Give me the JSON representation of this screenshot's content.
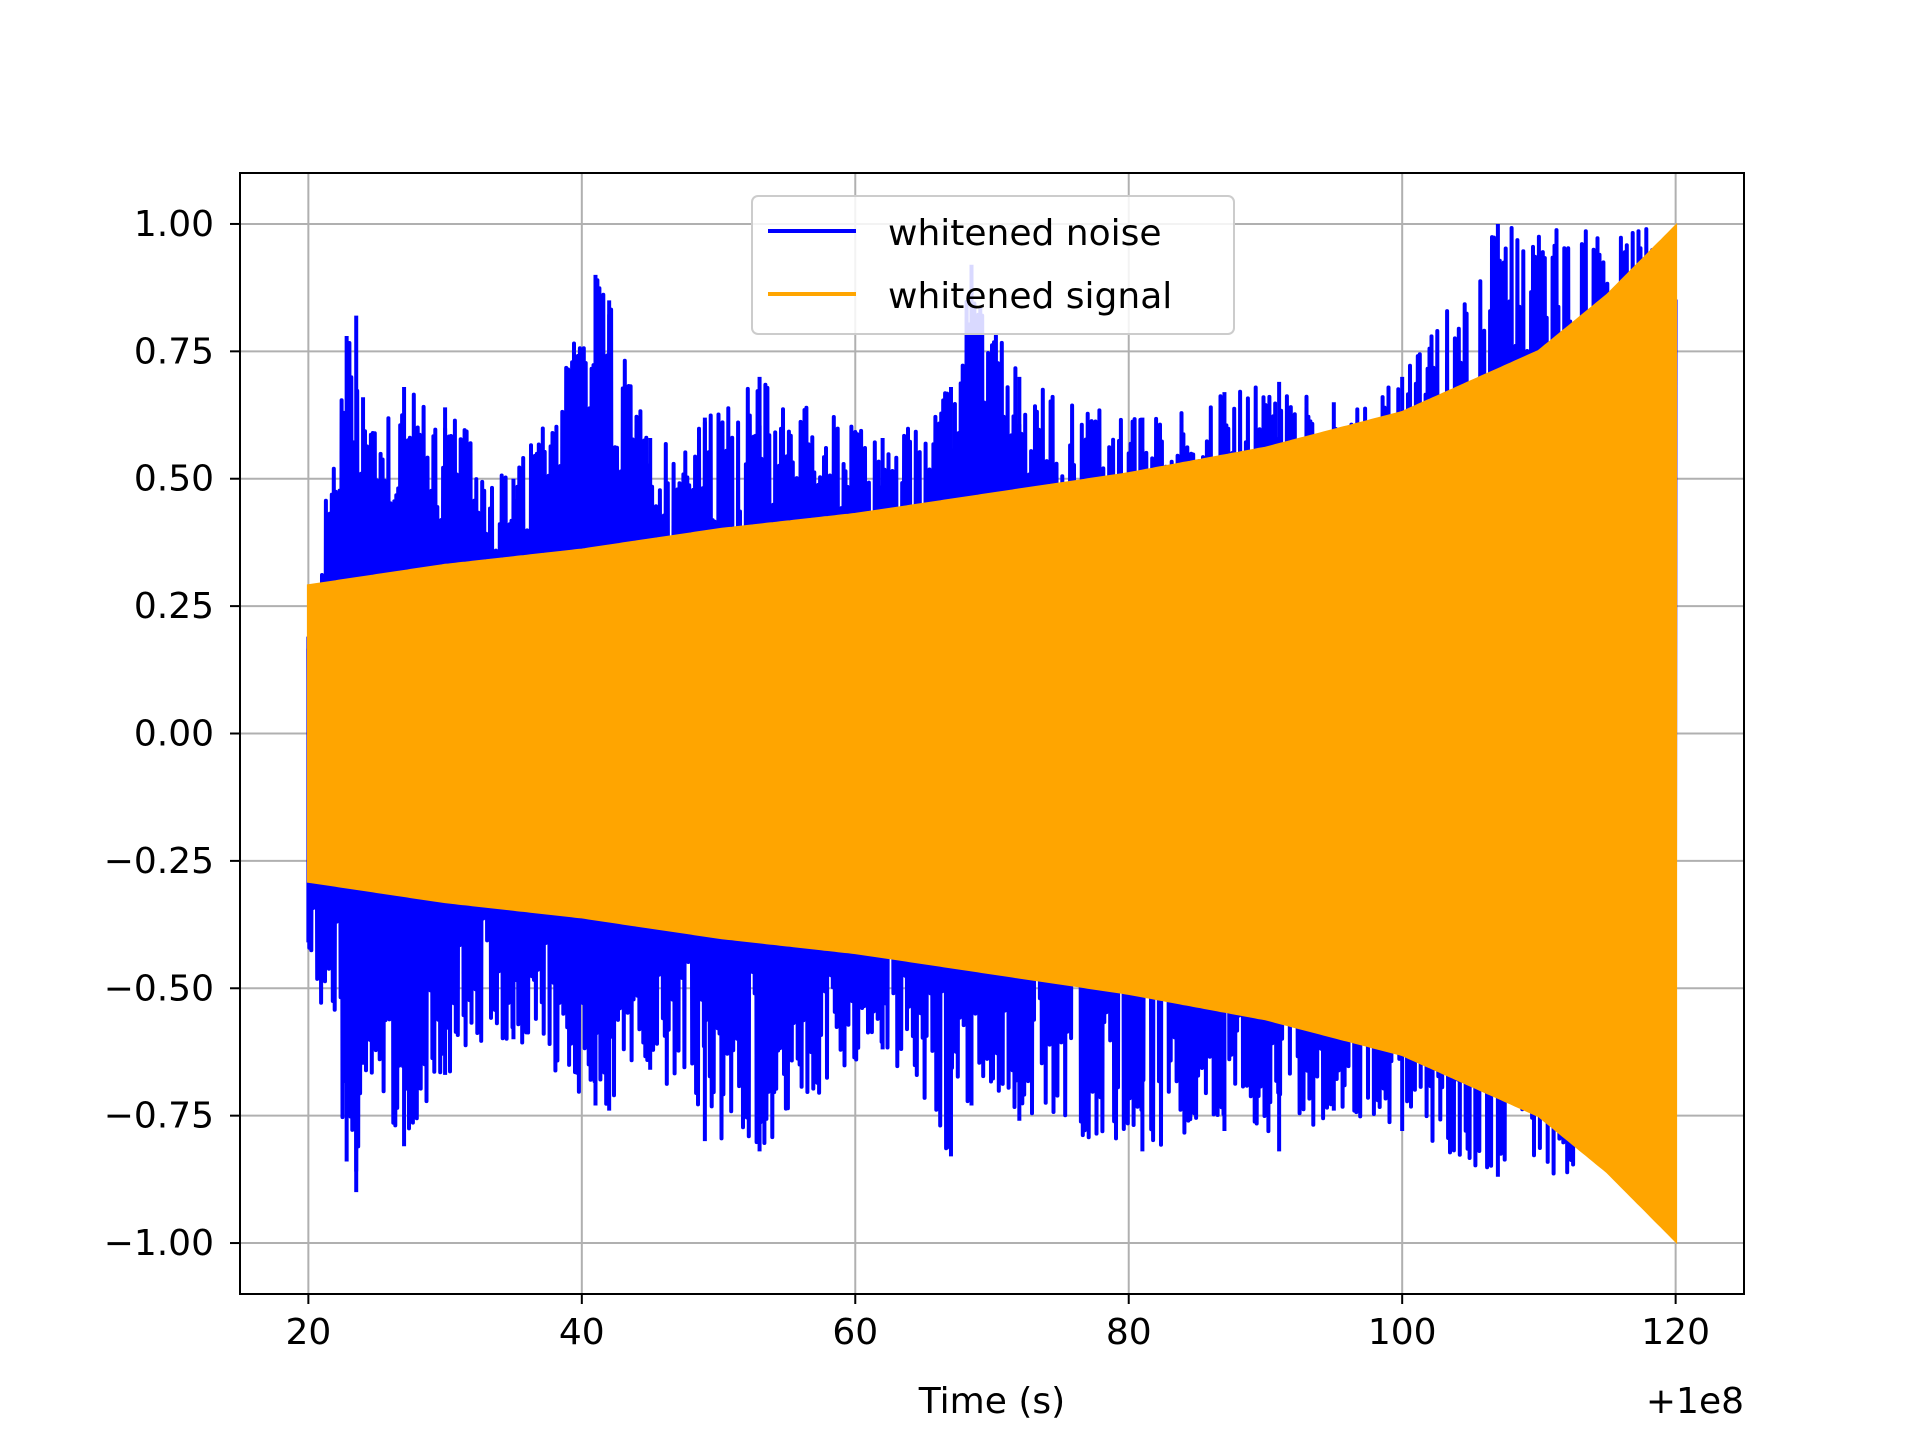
{
  "chart_data": {
    "type": "line",
    "title": "",
    "xlabel": "Time (s)",
    "ylabel": "",
    "x_offset_label": "+1e8",
    "xlim": [
      15,
      125
    ],
    "ylim": [
      -1.1,
      1.1
    ],
    "xticks": [
      20,
      40,
      60,
      80,
      100,
      120
    ],
    "xtick_labels": [
      "20",
      "40",
      "60",
      "80",
      "100",
      "120"
    ],
    "yticks": [
      1.0,
      0.75,
      0.5,
      0.25,
      0.0,
      -0.25,
      -0.5,
      -0.75,
      -1.0
    ],
    "ytick_labels": [
      "1.00",
      "0.75",
      "0.50",
      "0.25",
      "0.00",
      "−0.25",
      "−0.50",
      "−0.75",
      "−1.00"
    ],
    "grid": true,
    "legend_position": "top-center",
    "series": [
      {
        "name": "whitened noise",
        "color": "#0000ff",
        "x": [
          20,
          22.8,
          23.5,
          24,
          27,
          30,
          35,
          41,
          42,
          45,
          49,
          53,
          62,
          67,
          68.5,
          72,
          81,
          87,
          91,
          95,
          100,
          107
        ],
        "peak_max": [
          0.19,
          0.78,
          0.82,
          0.66,
          0.68,
          0.64,
          0.5,
          0.9,
          0.85,
          0.58,
          0.62,
          0.7,
          0.58,
          0.68,
          0.92,
          0.7,
          0.62,
          0.67,
          0.69,
          0.65,
          0.7,
          1.0
        ],
        "peak_min": [
          -0.41,
          -0.84,
          -0.9,
          -0.65,
          -0.81,
          -0.67,
          -0.6,
          -0.73,
          -0.74,
          -0.66,
          -0.8,
          -0.82,
          -0.62,
          -0.83,
          -0.73,
          -0.76,
          -0.82,
          -0.78,
          -0.82,
          -0.74,
          -0.78,
          -0.87
        ]
      },
      {
        "name": "whitened signal",
        "color": "#ffa500",
        "x": [
          20,
          30,
          40,
          50,
          60,
          70,
          80,
          90,
          100,
          110,
          115,
          120
        ],
        "envelope": [
          0.29,
          0.33,
          0.36,
          0.4,
          0.43,
          0.47,
          0.51,
          0.56,
          0.63,
          0.75,
          0.86,
          0.995
        ]
      }
    ]
  }
}
